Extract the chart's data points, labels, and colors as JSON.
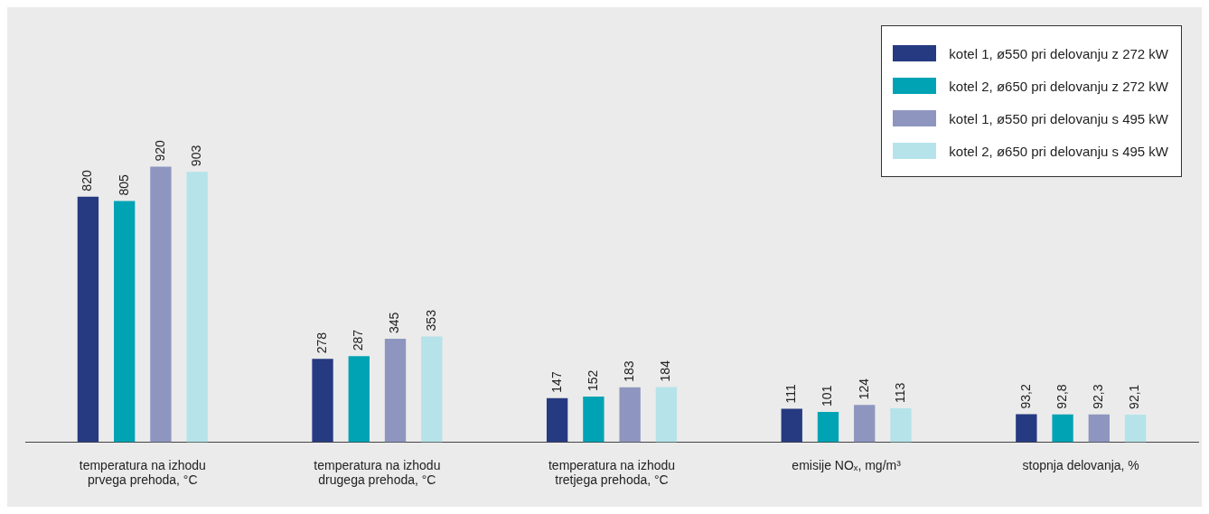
{
  "chart_data": {
    "type": "bar",
    "categories": [
      "temperatura na izhodu\nprvega prehoda, °C",
      "temperatura na izhodu\ndrugega prehoda, °C",
      "temperatura na izhodu\ntretjega prehoda, °C",
      "emisije NOₓ, mg/m³",
      "stopnja delovanja, %"
    ],
    "series": [
      {
        "name": "kotel 1, ø550 pri delovanju z 272 kW",
        "color": "#253a80",
        "values": [
          820,
          278,
          147,
          111,
          93.2
        ],
        "value_labels": [
          "820",
          "278",
          "147",
          "111",
          "93,2"
        ]
      },
      {
        "name": "kotel 2, ø650 pri delovanju z 272 kW",
        "color": "#00a3b4",
        "values": [
          805,
          287,
          152,
          101,
          92.8
        ],
        "value_labels": [
          "805",
          "287",
          "152",
          "101",
          "92,8"
        ]
      },
      {
        "name": "kotel 1, ø550 pri delovanju s 495 kW",
        "color": "#8e96c0",
        "values": [
          920,
          345,
          183,
          124,
          92.3
        ],
        "value_labels": [
          "920",
          "345",
          "183",
          "124",
          "92,3"
        ]
      },
      {
        "name": "kotel 2, ø650 pri delovanju s 495 kW",
        "color": "#b6e3ea",
        "values": [
          903,
          353,
          184,
          113,
          92.1
        ],
        "value_labels": [
          "903",
          "353",
          "184",
          "113",
          "92,1"
        ]
      }
    ],
    "legend": "top right"
  }
}
